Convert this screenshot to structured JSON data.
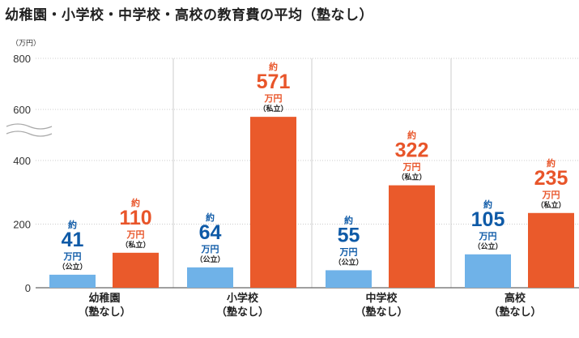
{
  "header": {
    "title": "幼稚園・小学校・中学校・高校の教育費の平均（塾なし）",
    "unit_label": "（万円）"
  },
  "colors": {
    "public": "#6fb2e8",
    "private": "#ea5a2b",
    "public_text": "#0e5aa7",
    "private_text": "#e8552a",
    "grid": "#cccccc"
  },
  "chart_data": {
    "type": "bar",
    "title": "幼稚園・小学校・中学校・高校の教育費の平均（塾なし）",
    "ylabel": "（万円）",
    "xlabel": "",
    "ylim": [
      0,
      800
    ],
    "yticks": [
      "0",
      "200",
      "400",
      "600",
      "800"
    ],
    "axis_break": "between 400 and 600 (wavy break lines)",
    "categories": [
      {
        "line1": "幼稚園",
        "line2": "（塾なし）"
      },
      {
        "line1": "小学校",
        "line2": "（塾なし）"
      },
      {
        "line1": "中学校",
        "line2": "（塾なし）"
      },
      {
        "line1": "高校",
        "line2": "（塾なし）"
      }
    ],
    "series": [
      {
        "name": "公立",
        "label": "（公立）",
        "values": [
          41,
          64,
          55,
          105
        ]
      },
      {
        "name": "私立",
        "label": "（私立）",
        "values": [
          110,
          571,
          322,
          235
        ]
      }
    ],
    "prefix": "約",
    "unit": "万円"
  }
}
